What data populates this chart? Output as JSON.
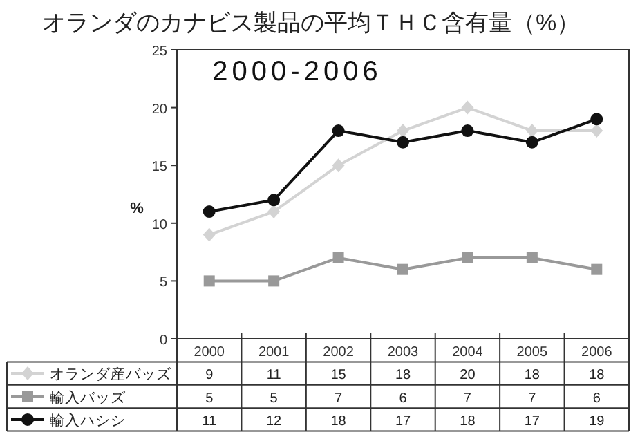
{
  "chart_data": {
    "type": "line",
    "title": "オランダのカナビス製品の平均ＴＨＣ含有量（%）",
    "subtitle": "2000-2006",
    "ylabel": "%",
    "categories": [
      "2000",
      "2001",
      "2002",
      "2003",
      "2004",
      "2005",
      "2006"
    ],
    "ylim": [
      0,
      25
    ],
    "yticks": [
      0,
      5,
      10,
      15,
      20,
      25
    ],
    "grid": false,
    "legend": "bottom",
    "data_labels": true,
    "series": [
      {
        "name": "オランダ産バッズ",
        "color": "#d3d3d3",
        "marker": "diamond",
        "values": [
          9,
          11,
          15,
          18,
          20,
          18,
          18
        ]
      },
      {
        "name": "輸入バッズ",
        "color": "#999999",
        "marker": "square",
        "values": [
          5,
          5,
          7,
          6,
          7,
          7,
          6
        ]
      },
      {
        "name": "輸入ハシシ",
        "color": "#111111",
        "marker": "circle",
        "values": [
          11,
          12,
          18,
          17,
          18,
          17,
          19
        ]
      }
    ]
  }
}
